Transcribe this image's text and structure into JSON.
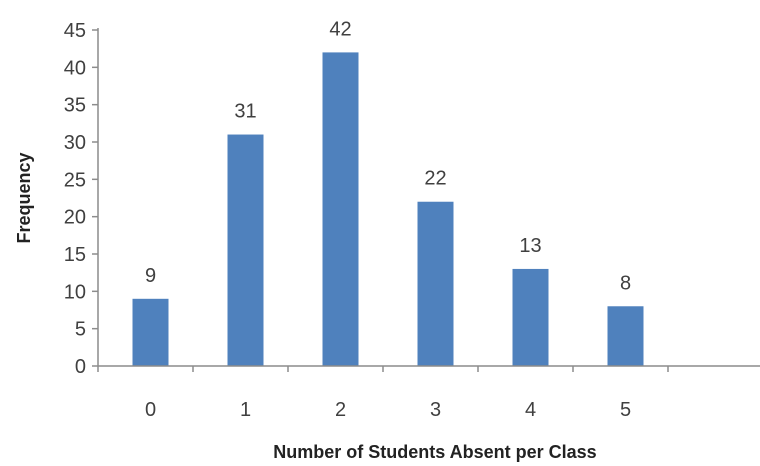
{
  "chart_data": {
    "type": "bar",
    "categories": [
      "0",
      "1",
      "2",
      "3",
      "4",
      "5"
    ],
    "values": [
      9,
      31,
      42,
      22,
      13,
      8
    ],
    "xlabel": "Number of Students Absent per Class",
    "ylabel": "Frequency",
    "ylim": [
      0,
      45
    ],
    "yticks": [
      "0",
      "5",
      "10",
      "15",
      "20",
      "25",
      "30",
      "35",
      "40",
      "45"
    ],
    "data_labels": [
      "9",
      "31",
      "42",
      "22",
      "13",
      "8"
    ],
    "grid": false,
    "legend": "none",
    "colors": {
      "bar": "#4F81BD",
      "axis": "#8C8C8C",
      "text": "#404040"
    }
  }
}
